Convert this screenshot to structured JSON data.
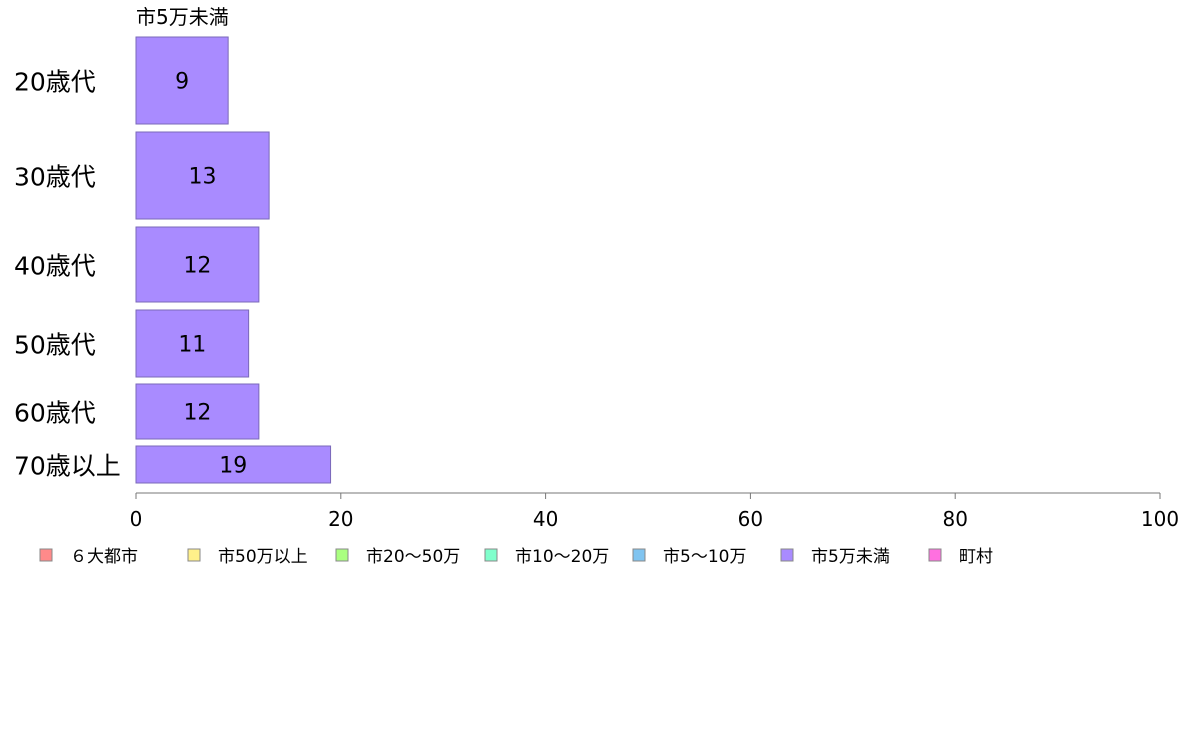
{
  "chart_data": {
    "type": "bar",
    "orientation": "horizontal",
    "title": "市5万未満",
    "categories": [
      "20歳代",
      "30歳代",
      "40歳代",
      "50歳代",
      "60歳代",
      "70歳以上"
    ],
    "values": [
      9,
      13,
      12,
      11,
      12,
      19
    ],
    "series_color": "#a98bff",
    "xlim": [
      0,
      100
    ],
    "x_ticks": [
      0,
      20,
      40,
      60,
      80,
      100
    ],
    "grid": false,
    "legend_position": "bottom",
    "legend": [
      {
        "label": "６大都市",
        "color": "#ff8a8a"
      },
      {
        "label": "市50万以上",
        "color": "#fff08a"
      },
      {
        "label": "市20～50万",
        "color": "#aaff80"
      },
      {
        "label": "市10～20万",
        "color": "#80ffcc"
      },
      {
        "label": "市5～10万",
        "color": "#80c4f0"
      },
      {
        "label": "市5万未満",
        "color": "#a98bff"
      },
      {
        "label": "町村",
        "color": "#ff70e0"
      }
    ]
  }
}
